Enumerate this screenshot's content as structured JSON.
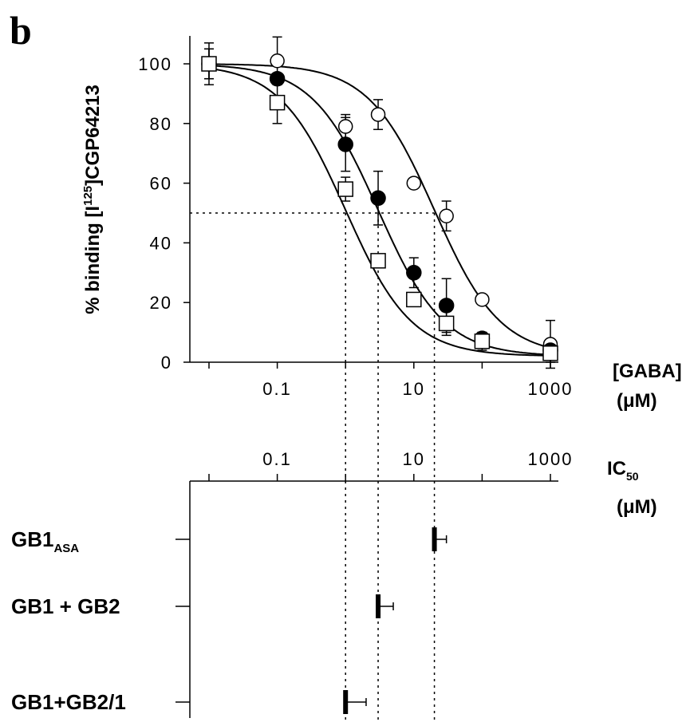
{
  "panel_label": "b",
  "chart_data": [
    {
      "type": "scatter",
      "title": "",
      "ylabel": {
        "pre": "% binding [I",
        "sup": "125",
        "post": "]CGP64213"
      },
      "xlabel": {
        "main": "[GABA]",
        "unit": "(μM)"
      },
      "x_scale": "log",
      "xlim": [
        0.01,
        1000
      ],
      "ylim": [
        0,
        100
      ],
      "yticks": [
        "0",
        "20",
        "40",
        "60",
        "80",
        "100"
      ],
      "xtick_labels": [
        {
          "x": 0.1,
          "label": "0.1"
        },
        {
          "x": 10,
          "label": "10"
        },
        {
          "x": 1000,
          "label": "1000"
        }
      ],
      "x_minor_ticks": [
        0.01,
        0.1,
        1,
        10,
        100,
        1000
      ],
      "grid": false,
      "reference_line_y": 50,
      "series": [
        {
          "marker": "open-circle",
          "ic50": 20,
          "x": [
            0.01,
            0.1,
            1,
            3,
            10,
            30,
            100,
            1000
          ],
          "y": [
            100,
            101,
            79,
            83,
            60,
            49,
            21,
            6
          ],
          "err": [
            5,
            8,
            4,
            5,
            0,
            5,
            0,
            8
          ]
        },
        {
          "marker": "filled-circle",
          "ic50": 3,
          "x": [
            0.01,
            0.1,
            1,
            3,
            10,
            30,
            100,
            1000
          ],
          "y": [
            100,
            95,
            73,
            55,
            30,
            19,
            8,
            4
          ],
          "err": [
            5,
            0,
            9,
            9,
            5,
            9,
            2,
            3
          ]
        },
        {
          "marker": "open-square",
          "ic50": 1,
          "x": [
            0.01,
            0.1,
            1,
            3,
            10,
            30,
            100,
            1000
          ],
          "y": [
            100,
            87,
            58,
            34,
            21,
            13,
            7,
            3
          ],
          "err": [
            7,
            7,
            4,
            0,
            0,
            4,
            3,
            3
          ]
        }
      ]
    },
    {
      "type": "bar",
      "title": "",
      "xlabel": {
        "main": "IC",
        "sub": "50",
        "unit": "(μM)"
      },
      "x_scale": "log",
      "xlim": [
        0.01,
        1000
      ],
      "xtick_labels": [
        {
          "x": 0.1,
          "label": "0.1"
        },
        {
          "x": 10,
          "label": "10"
        },
        {
          "x": 1000,
          "label": "1000"
        }
      ],
      "x_minor_ticks": [
        0.01,
        0.1,
        1,
        10,
        100,
        1000
      ],
      "categories": [
        {
          "base": "GB1",
          "sub": "ASA",
          "text": "",
          "value": 20,
          "err": 10
        },
        {
          "base": "",
          "sub": "",
          "text": "GB1 + GB2",
          "value": 3,
          "err": 2
        },
        {
          "base": "",
          "sub": "",
          "text": "GB1+GB2/1",
          "value": 1,
          "err": 1
        }
      ]
    }
  ]
}
